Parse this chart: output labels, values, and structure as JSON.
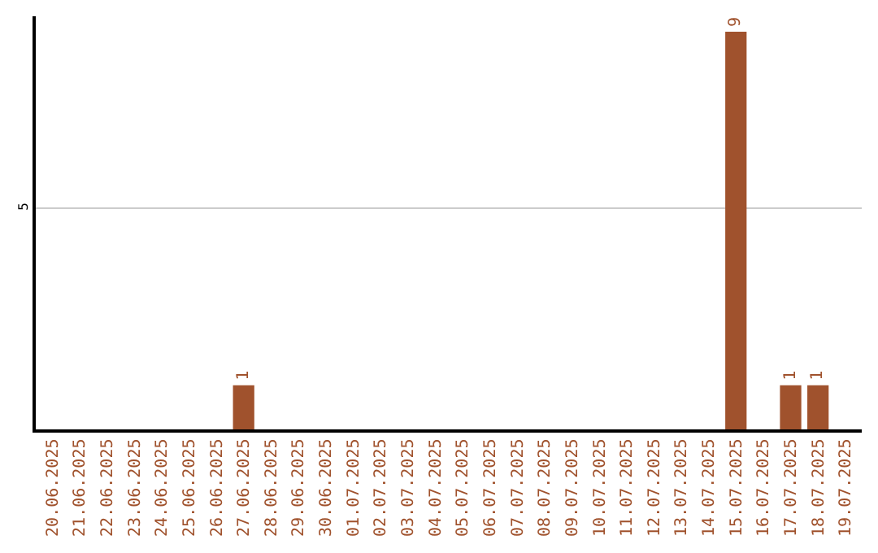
{
  "chart_data": {
    "type": "bar",
    "categories": [
      "20.06.2025",
      "21.06.2025",
      "22.06.2025",
      "23.06.2025",
      "24.06.2025",
      "25.06.2025",
      "26.06.2025",
      "27.06.2025",
      "28.06.2025",
      "29.06.2025",
      "30.06.2025",
      "01.07.2025",
      "02.07.2025",
      "03.07.2025",
      "04.07.2025",
      "05.07.2025",
      "06.07.2025",
      "07.07.2025",
      "08.07.2025",
      "09.07.2025",
      "10.07.2025",
      "11.07.2025",
      "12.07.2025",
      "13.07.2025",
      "14.07.2025",
      "15.07.2025",
      "16.07.2025",
      "17.07.2025",
      "18.07.2025",
      "19.07.2025"
    ],
    "values": [
      0,
      0,
      0,
      0,
      0,
      0,
      0,
      1,
      0,
      0,
      0,
      0,
      0,
      0,
      0,
      0,
      0,
      0,
      0,
      0,
      0,
      0,
      0,
      0,
      0,
      9,
      0,
      1,
      1,
      0
    ],
    "value_labels": [
      null,
      null,
      null,
      null,
      null,
      null,
      null,
      "1",
      null,
      null,
      null,
      null,
      null,
      null,
      null,
      null,
      null,
      null,
      null,
      null,
      null,
      null,
      null,
      null,
      null,
      "9",
      null,
      "1",
      "1",
      null
    ],
    "color": "#a0522d",
    "ylim": [
      0,
      9.35
    ],
    "yticks": [
      5
    ],
    "grid": "y",
    "legend": false
  }
}
